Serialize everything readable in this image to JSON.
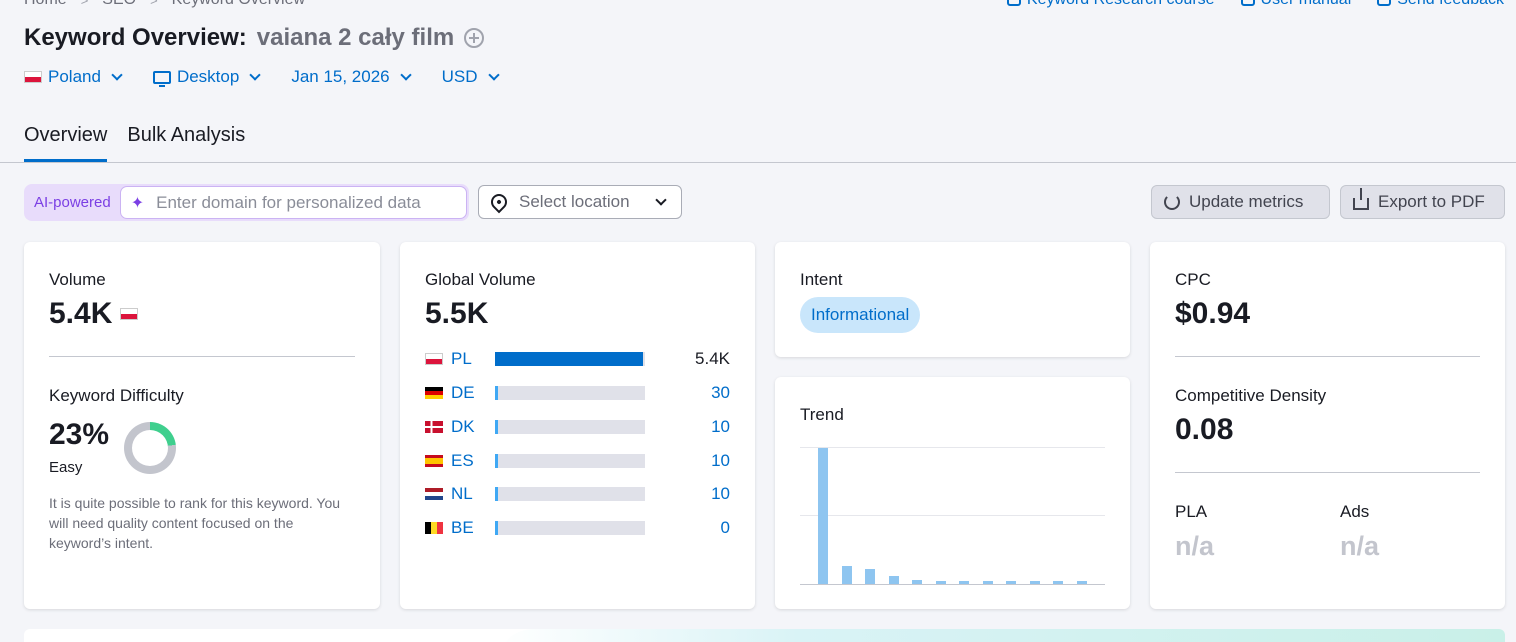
{
  "breadcrumbs": [
    "Home",
    "SEO",
    "Keyword Overview"
  ],
  "toplinks": [
    "Keyword Research course",
    "User manual",
    "Send feedback"
  ],
  "title": {
    "prefix": "Keyword Overview:",
    "keyword": "vaiana 2 cały film"
  },
  "filters": {
    "country": "Poland",
    "device": "Desktop",
    "date": "Jan 15, 2026",
    "currency": "USD"
  },
  "tabs": [
    "Overview",
    "Bulk Analysis"
  ],
  "toolbar": {
    "ai_label": "AI-powered",
    "domain_placeholder": "Enter domain for personalized data",
    "location_placeholder": "Select location",
    "update_label": "Update metrics",
    "export_label": "Export to PDF"
  },
  "volume": {
    "label": "Volume",
    "value": "5.4K"
  },
  "kd": {
    "label": "Keyword Difficulty",
    "value": "23%",
    "percent": 23,
    "level": "Easy",
    "description": "It is quite possible to rank for this keyword. You will need quality content focused on the keyword’s intent."
  },
  "global_volume": {
    "label": "Global Volume",
    "value": "5.5K",
    "rows": [
      {
        "code": "PL",
        "value": "5.4K",
        "share": 1.0
      },
      {
        "code": "DE",
        "value": "30",
        "share": 0.006
      },
      {
        "code": "DK",
        "value": "10",
        "share": 0.002
      },
      {
        "code": "ES",
        "value": "10",
        "share": 0.002
      },
      {
        "code": "NL",
        "value": "10",
        "share": 0.002
      },
      {
        "code": "BE",
        "value": "0",
        "share": 0
      }
    ]
  },
  "intent": {
    "label": "Intent",
    "value": "Informational"
  },
  "trend": {
    "label": "Trend",
    "values": [
      100,
      13,
      11,
      6,
      3,
      2.5,
      2.5,
      2,
      2,
      2,
      2,
      2
    ]
  },
  "cpc": {
    "label": "CPC",
    "value": "$0.94"
  },
  "competitive_density": {
    "label": "Competitive Density",
    "value": "0.08"
  },
  "pla": {
    "label": "PLA",
    "value": "n/a"
  },
  "ads": {
    "label": "Ads",
    "value": "n/a"
  },
  "colors": {
    "accent": "#006dca",
    "ai": "#7b3fe4",
    "easy": "#3fcf8e",
    "trend_bar": "#8ec5f0"
  }
}
